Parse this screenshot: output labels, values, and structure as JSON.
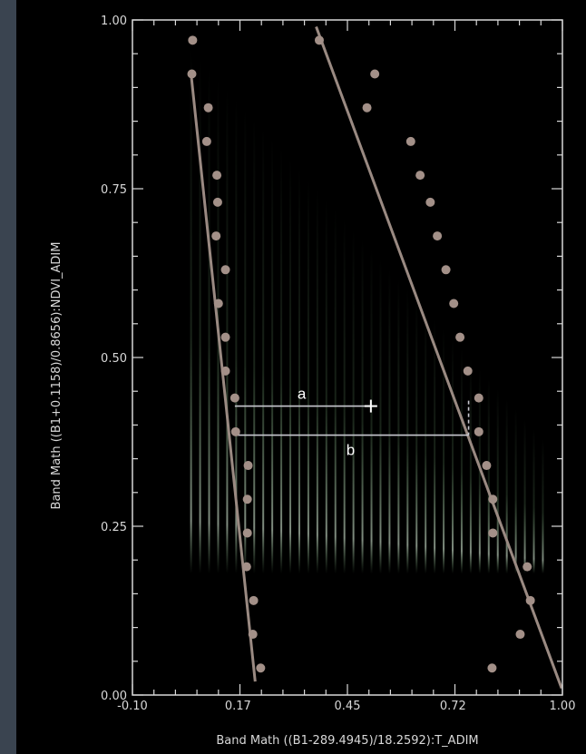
{
  "chart_data": {
    "type": "scatter",
    "title": "",
    "xlabel": "Band Math ((B1-289.4945)/18.2592):T_ADIM",
    "ylabel": "Band Math ((B1+0.1158)/0.8656):NDVI_ADIM",
    "xlim": [
      -0.1,
      1.0
    ],
    "ylim": [
      0.0,
      1.0
    ],
    "x_ticks": [
      -0.1,
      0.17,
      0.45,
      0.72,
      1.0
    ],
    "x_tick_labels": [
      "-0.10",
      "0.17",
      "0.45",
      "0.72",
      "1.00"
    ],
    "y_ticks": [
      0.0,
      0.25,
      0.5,
      0.75,
      1.0
    ],
    "y_tick_labels": [
      "0.00",
      "0.25",
      "0.50",
      "0.75",
      "1.00"
    ],
    "grid": false,
    "colors": {
      "background": "#000000",
      "axes": "#d8d8d8",
      "points": "#a39088",
      "lines": "#9a8a82",
      "annotation": "#c8c8d0",
      "density": "#9fe39f"
    },
    "series": [
      {
        "role": "dry-edge-points",
        "points": [
          [
            0.82,
            0.04
          ],
          [
            0.892,
            0.09
          ],
          [
            0.918,
            0.14
          ],
          [
            0.91,
            0.19
          ],
          [
            0.822,
            0.24
          ],
          [
            0.822,
            0.29
          ],
          [
            0.806,
            0.34
          ],
          [
            0.786,
            0.39
          ],
          [
            0.786,
            0.44
          ],
          [
            0.758,
            0.48
          ],
          [
            0.738,
            0.53
          ],
          [
            0.722,
            0.58
          ],
          [
            0.702,
            0.63
          ],
          [
            0.68,
            0.68
          ],
          [
            0.662,
            0.73
          ],
          [
            0.636,
            0.77
          ],
          [
            0.612,
            0.82
          ],
          [
            0.52,
            0.92
          ],
          [
            0.5,
            0.87
          ],
          [
            0.378,
            0.97
          ]
        ]
      },
      {
        "role": "wet-edge-points",
        "points": [
          [
            0.228,
            0.04
          ],
          [
            0.208,
            0.09
          ],
          [
            0.21,
            0.14
          ],
          [
            0.192,
            0.19
          ],
          [
            0.194,
            0.24
          ],
          [
            0.194,
            0.29
          ],
          [
            0.196,
            0.34
          ],
          [
            0.164,
            0.39
          ],
          [
            0.162,
            0.44
          ],
          [
            0.138,
            0.48
          ],
          [
            0.138,
            0.53
          ],
          [
            0.12,
            0.58
          ],
          [
            0.138,
            0.63
          ],
          [
            0.114,
            0.68
          ],
          [
            0.118,
            0.73
          ],
          [
            0.116,
            0.77
          ],
          [
            0.09,
            0.82
          ],
          [
            0.094,
            0.87
          ],
          [
            0.052,
            0.92
          ],
          [
            0.054,
            0.97
          ]
        ]
      }
    ],
    "fit_lines": [
      {
        "role": "dry-edge",
        "from": [
          0.37,
          0.99
        ],
        "to": [
          0.998,
          0.01
        ]
      },
      {
        "role": "wet-edge",
        "from": [
          0.05,
          0.92
        ],
        "to": [
          0.214,
          0.02
        ]
      }
    ],
    "density_columns": {
      "x_start": 0.05,
      "x_end": 0.95,
      "count": 40,
      "y_low": 0.18,
      "y_high_at_left": 0.96,
      "y_high_at_right": 0.38
    },
    "annotations": [
      {
        "label": "a",
        "from": [
          0.162,
          0.428
        ],
        "to": [
          0.51,
          0.428
        ]
      },
      {
        "label": "b",
        "from": [
          0.162,
          0.385
        ],
        "to": [
          0.76,
          0.385
        ]
      }
    ]
  }
}
